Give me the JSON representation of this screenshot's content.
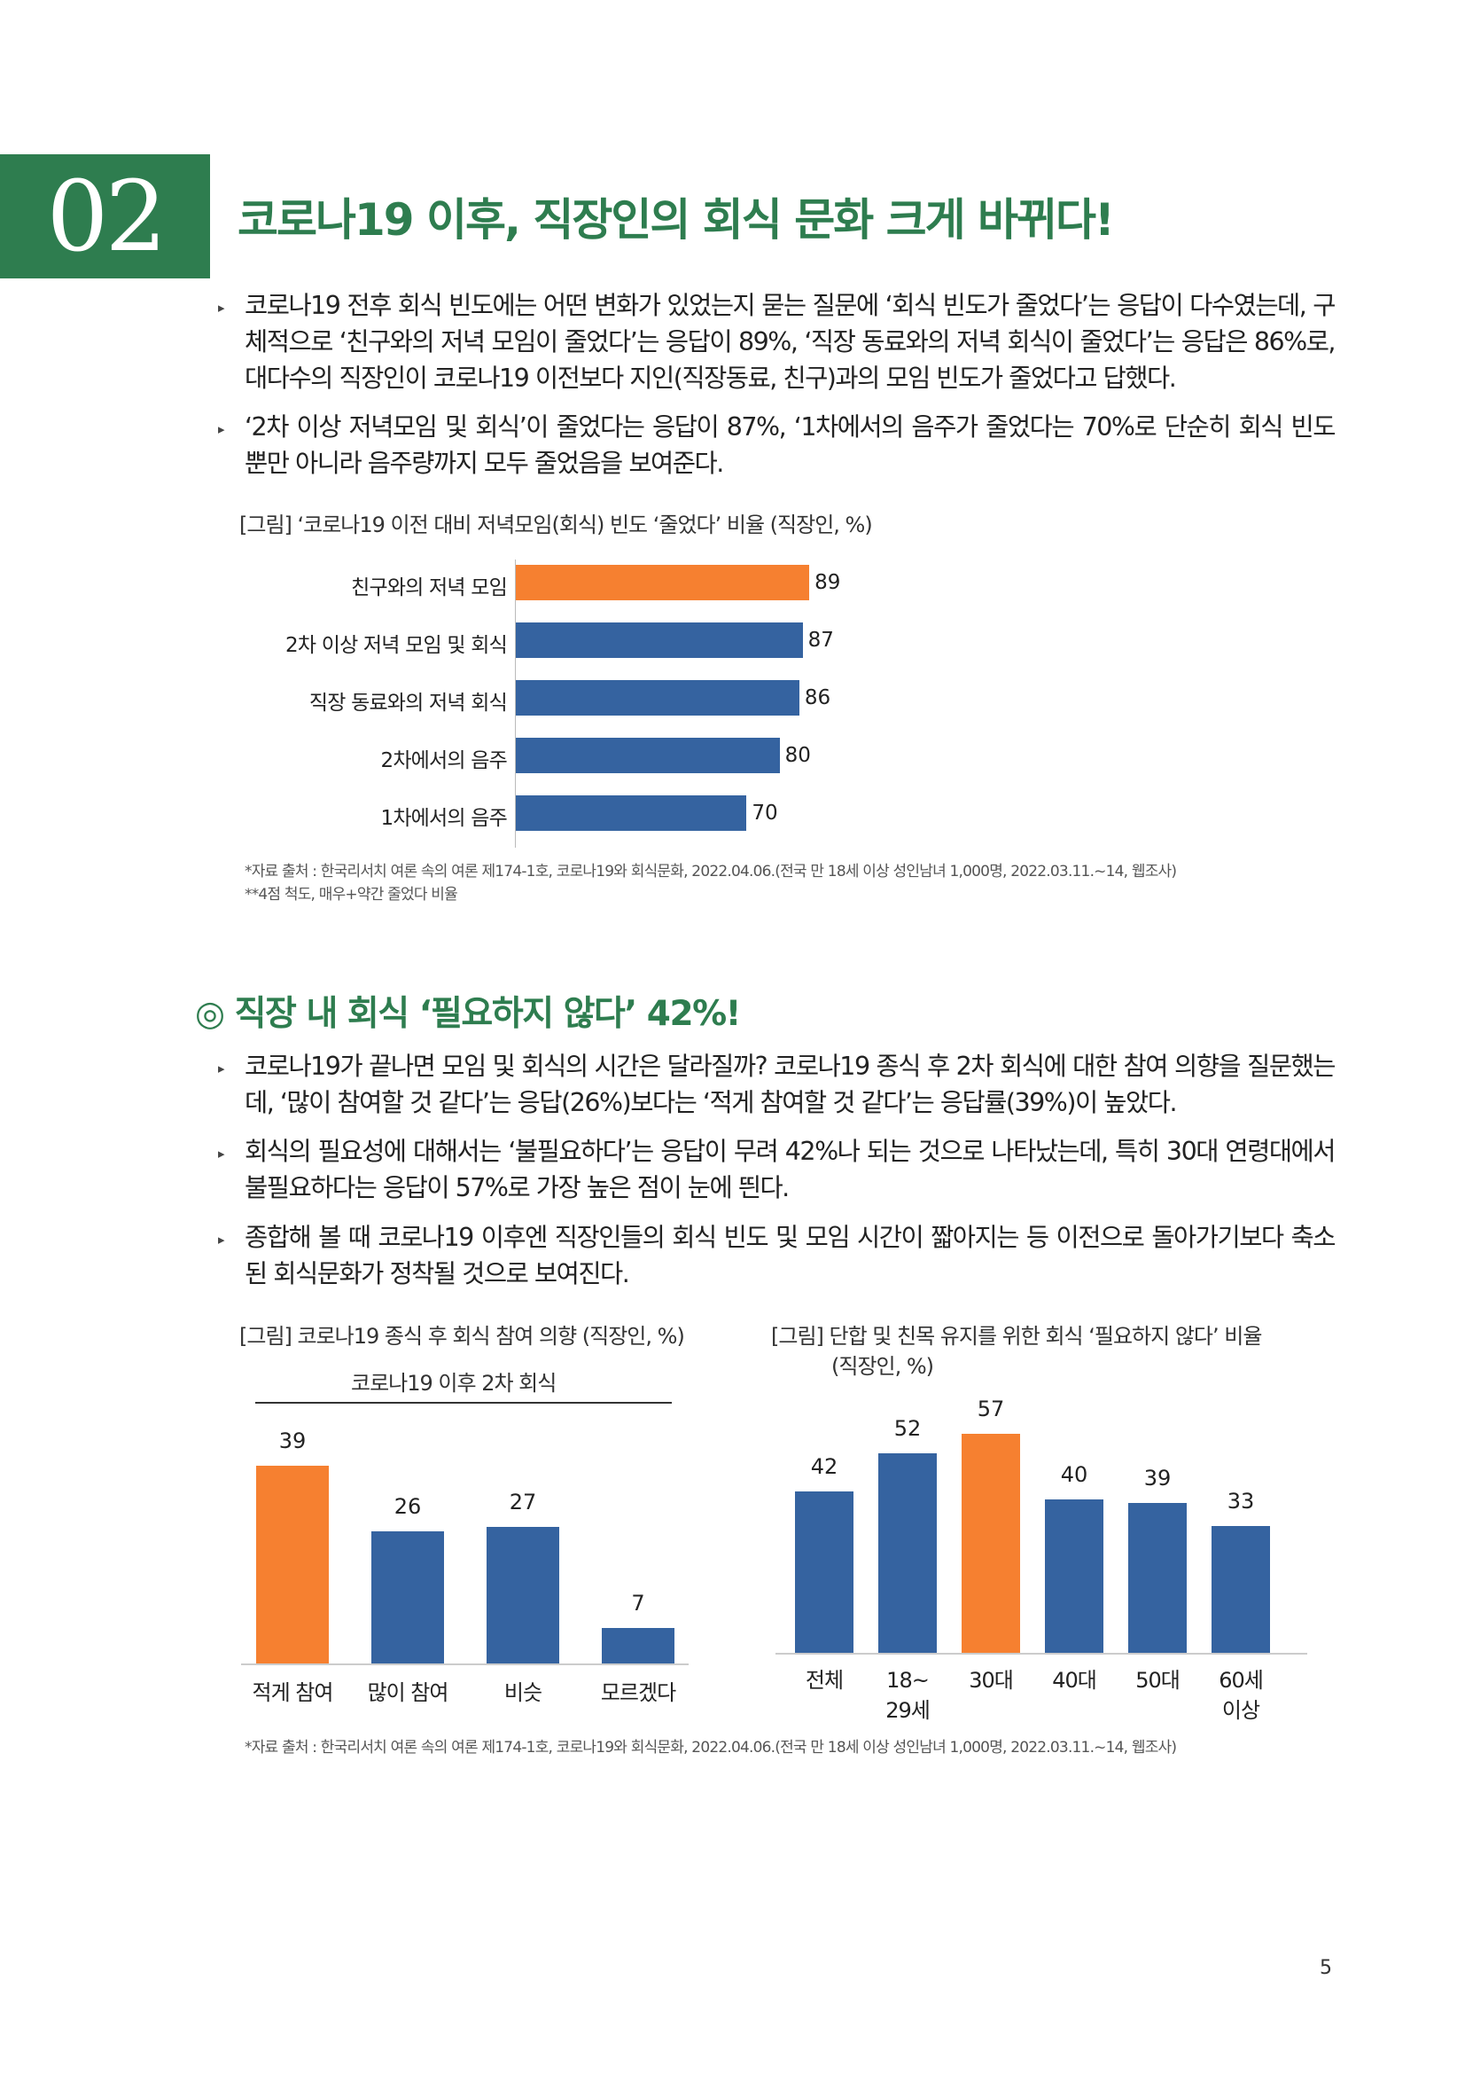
{
  "header": {
    "number": "02",
    "title": "코로나19 이후, 직장인의 회식 문화 크게 바뀌다!"
  },
  "section1": {
    "paragraphs": [
      "코로나19 전후 회식 빈도에는 어떤 변화가 있었는지 묻는 질문에 ‘회식 빈도가 줄었다’는 응답이 다수였는데, 구체적으로 ‘친구와의 저녁 모임이 줄었다’는 응답이 89%, ‘직장 동료와의 저녁 회식이 줄었다’는 응답은 86%로, 대다수의 직장인이 코로나19 이전보다 지인(직장동료, 친구)과의 모임 빈도가 줄었다고 답했다.",
      "‘2차 이상 저녁모임 및 회식’이 줄었다는 응답이 87%, ‘1차에서의 음주가 줄었다는 70%로 단순히 회식 빈도 뿐만 아니라 음주량까지 모두 줄었음을 보여준다."
    ],
    "figure_title": "[그림] ‘코로나19 이전 대비 저녁모임(회식) 빈도 ‘줄었다’ 비율 (직장인, %)",
    "note1": "*자료 출처 : 한국리서치 여론 속의 여론 제174-1호, 코로나19와 회식문화, 2022.04.06.(전국 만 18세 이상 성인남녀 1,000명, 2022.03.11.~14, 웹조사)",
    "note2": "**4점 척도, 매우+약간 줄었다 비율"
  },
  "section2": {
    "heading": "◎ 직장 내 회식 ‘필요하지 않다’ 42%!",
    "paragraphs": [
      "코로나19가 끝나면 모임 및 회식의 시간은 달라질까? 코로나19 종식 후 2차 회식에 대한 참여 의향을 질문했는데, ‘많이 참여할 것 같다’는 응답(26%)보다는 ‘적게 참여할 것 같다’는 응답률(39%)이 높았다.",
      "회식의 필요성에 대해서는 ‘불필요하다’는 응답이 무려 42%나 되는 것으로 나타났는데, 특히 30대 연령대에서 불필요하다는 응답이 57%로 가장 높은 점이 눈에 띈다.",
      "종합해 볼 때 코로나19 이후엔 직장인들의 회식 빈도 및 모임 시간이 짧아지는 등 이전으로 돌아가기보다 축소된 회식문화가 정착될 것으로 보여진다."
    ],
    "fig2_title": "[그림] 코로나19 종식 후 회식 참여 의향 (직장인, %)",
    "fig2_subtitle": "코로나19 이후 2차 회식",
    "fig3_title_line1": "[그림] 단합 및 친목 유지를 위한 회식 ‘필요하지 않다’ 비율",
    "fig3_title_line2": "(직장인, %)",
    "note": "*자료 출처 : 한국리서치 여론 속의 여론 제174-1호, 코로나19와 회식문화, 2022.04.06.(전국 만 18세 이상 성인남녀 1,000명, 2022.03.11.~14, 웹조사)"
  },
  "page_number": "5",
  "colors": {
    "green": "#2e7d4f",
    "orange": "#f68030",
    "blue": "#3563a0"
  },
  "chart_data": [
    {
      "type": "bar",
      "orientation": "horizontal",
      "categories": [
        "친구와의 저녁 모임",
        "2차 이상 저녁 모임 및 회식",
        "직장 동료와의 저녁 회식",
        "2차에서의 음주",
        "1차에서의 음주"
      ],
      "values": [
        89,
        87,
        86,
        80,
        70
      ],
      "highlight": [
        0
      ],
      "xlim": [
        0,
        100
      ]
    },
    {
      "type": "bar",
      "categories": [
        "적게 참여",
        "많이 참여",
        "비슷",
        "모르겠다"
      ],
      "values": [
        39,
        26,
        27,
        7
      ],
      "highlight": [
        0
      ],
      "ylim": [
        0,
        39
      ]
    },
    {
      "type": "bar",
      "categories": [
        "전체",
        "18~\n29세",
        "30대",
        "40대",
        "50대",
        "60세\n이상"
      ],
      "values": [
        42,
        52,
        57,
        40,
        39,
        33
      ],
      "highlight": [
        2
      ],
      "ylim": [
        0,
        57
      ]
    }
  ]
}
